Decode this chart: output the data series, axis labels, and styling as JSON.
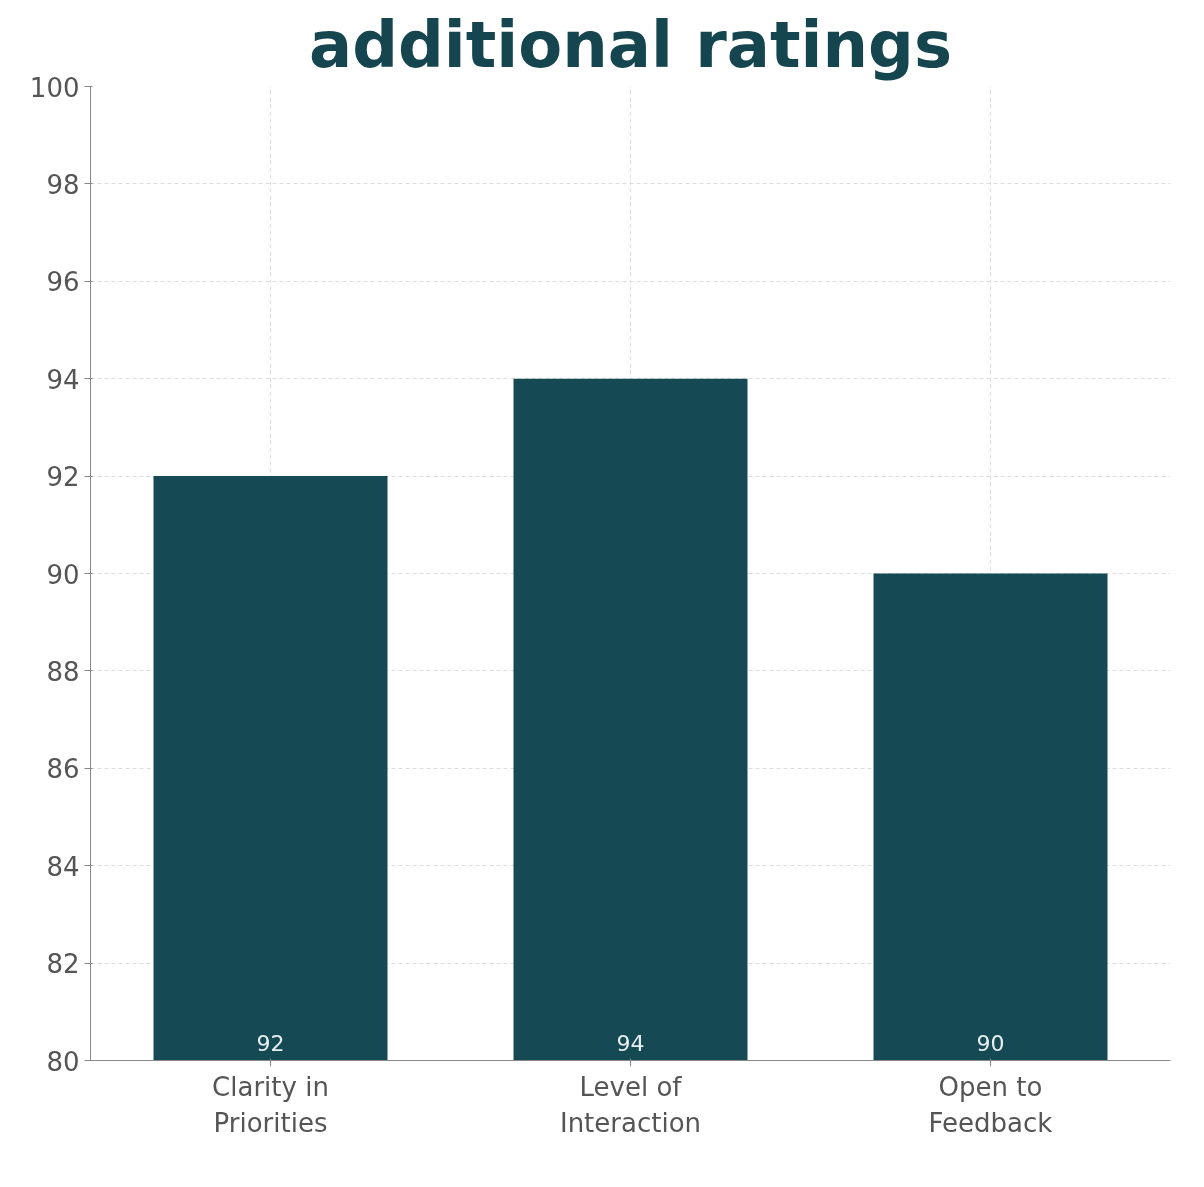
{
  "chart_data": {
    "type": "bar",
    "title": "additional ratings",
    "categories": [
      "Clarity in Priorities",
      "Level of Interaction",
      "Open to Feedback"
    ],
    "values": [
      92,
      94,
      90
    ],
    "color": "#154a54",
    "ylim": [
      80,
      100
    ],
    "yticks": [
      80,
      82,
      84,
      86,
      88,
      90,
      92,
      94,
      96,
      98,
      100
    ],
    "grid": true,
    "data_labels": true
  }
}
